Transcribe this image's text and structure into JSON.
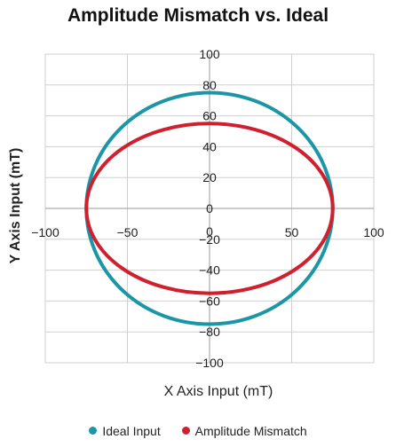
{
  "chart_data": {
    "type": "scatter",
    "title": "Amplitude Mismatch vs. Ideal",
    "xlabel": "X Axis Input (mT)",
    "ylabel": "Y Axis Input (mT)",
    "xlim": [
      -100,
      100
    ],
    "ylim": [
      -100,
      100
    ],
    "x_ticks": [
      -100,
      -50,
      0,
      50,
      100
    ],
    "y_ticks": [
      100,
      80,
      60,
      40,
      20,
      0,
      -20,
      -40,
      -60,
      -80,
      -100
    ],
    "grid": true,
    "legend_position": "bottom",
    "series": [
      {
        "name": "Ideal Input",
        "color": "#1a96a6",
        "shape": "ellipse",
        "x_amplitude": 75,
        "y_amplitude": 75
      },
      {
        "name": "Amplitude Mismatch",
        "color": "#d0202e",
        "shape": "ellipse",
        "x_amplitude": 75,
        "y_amplitude": 55
      }
    ]
  }
}
